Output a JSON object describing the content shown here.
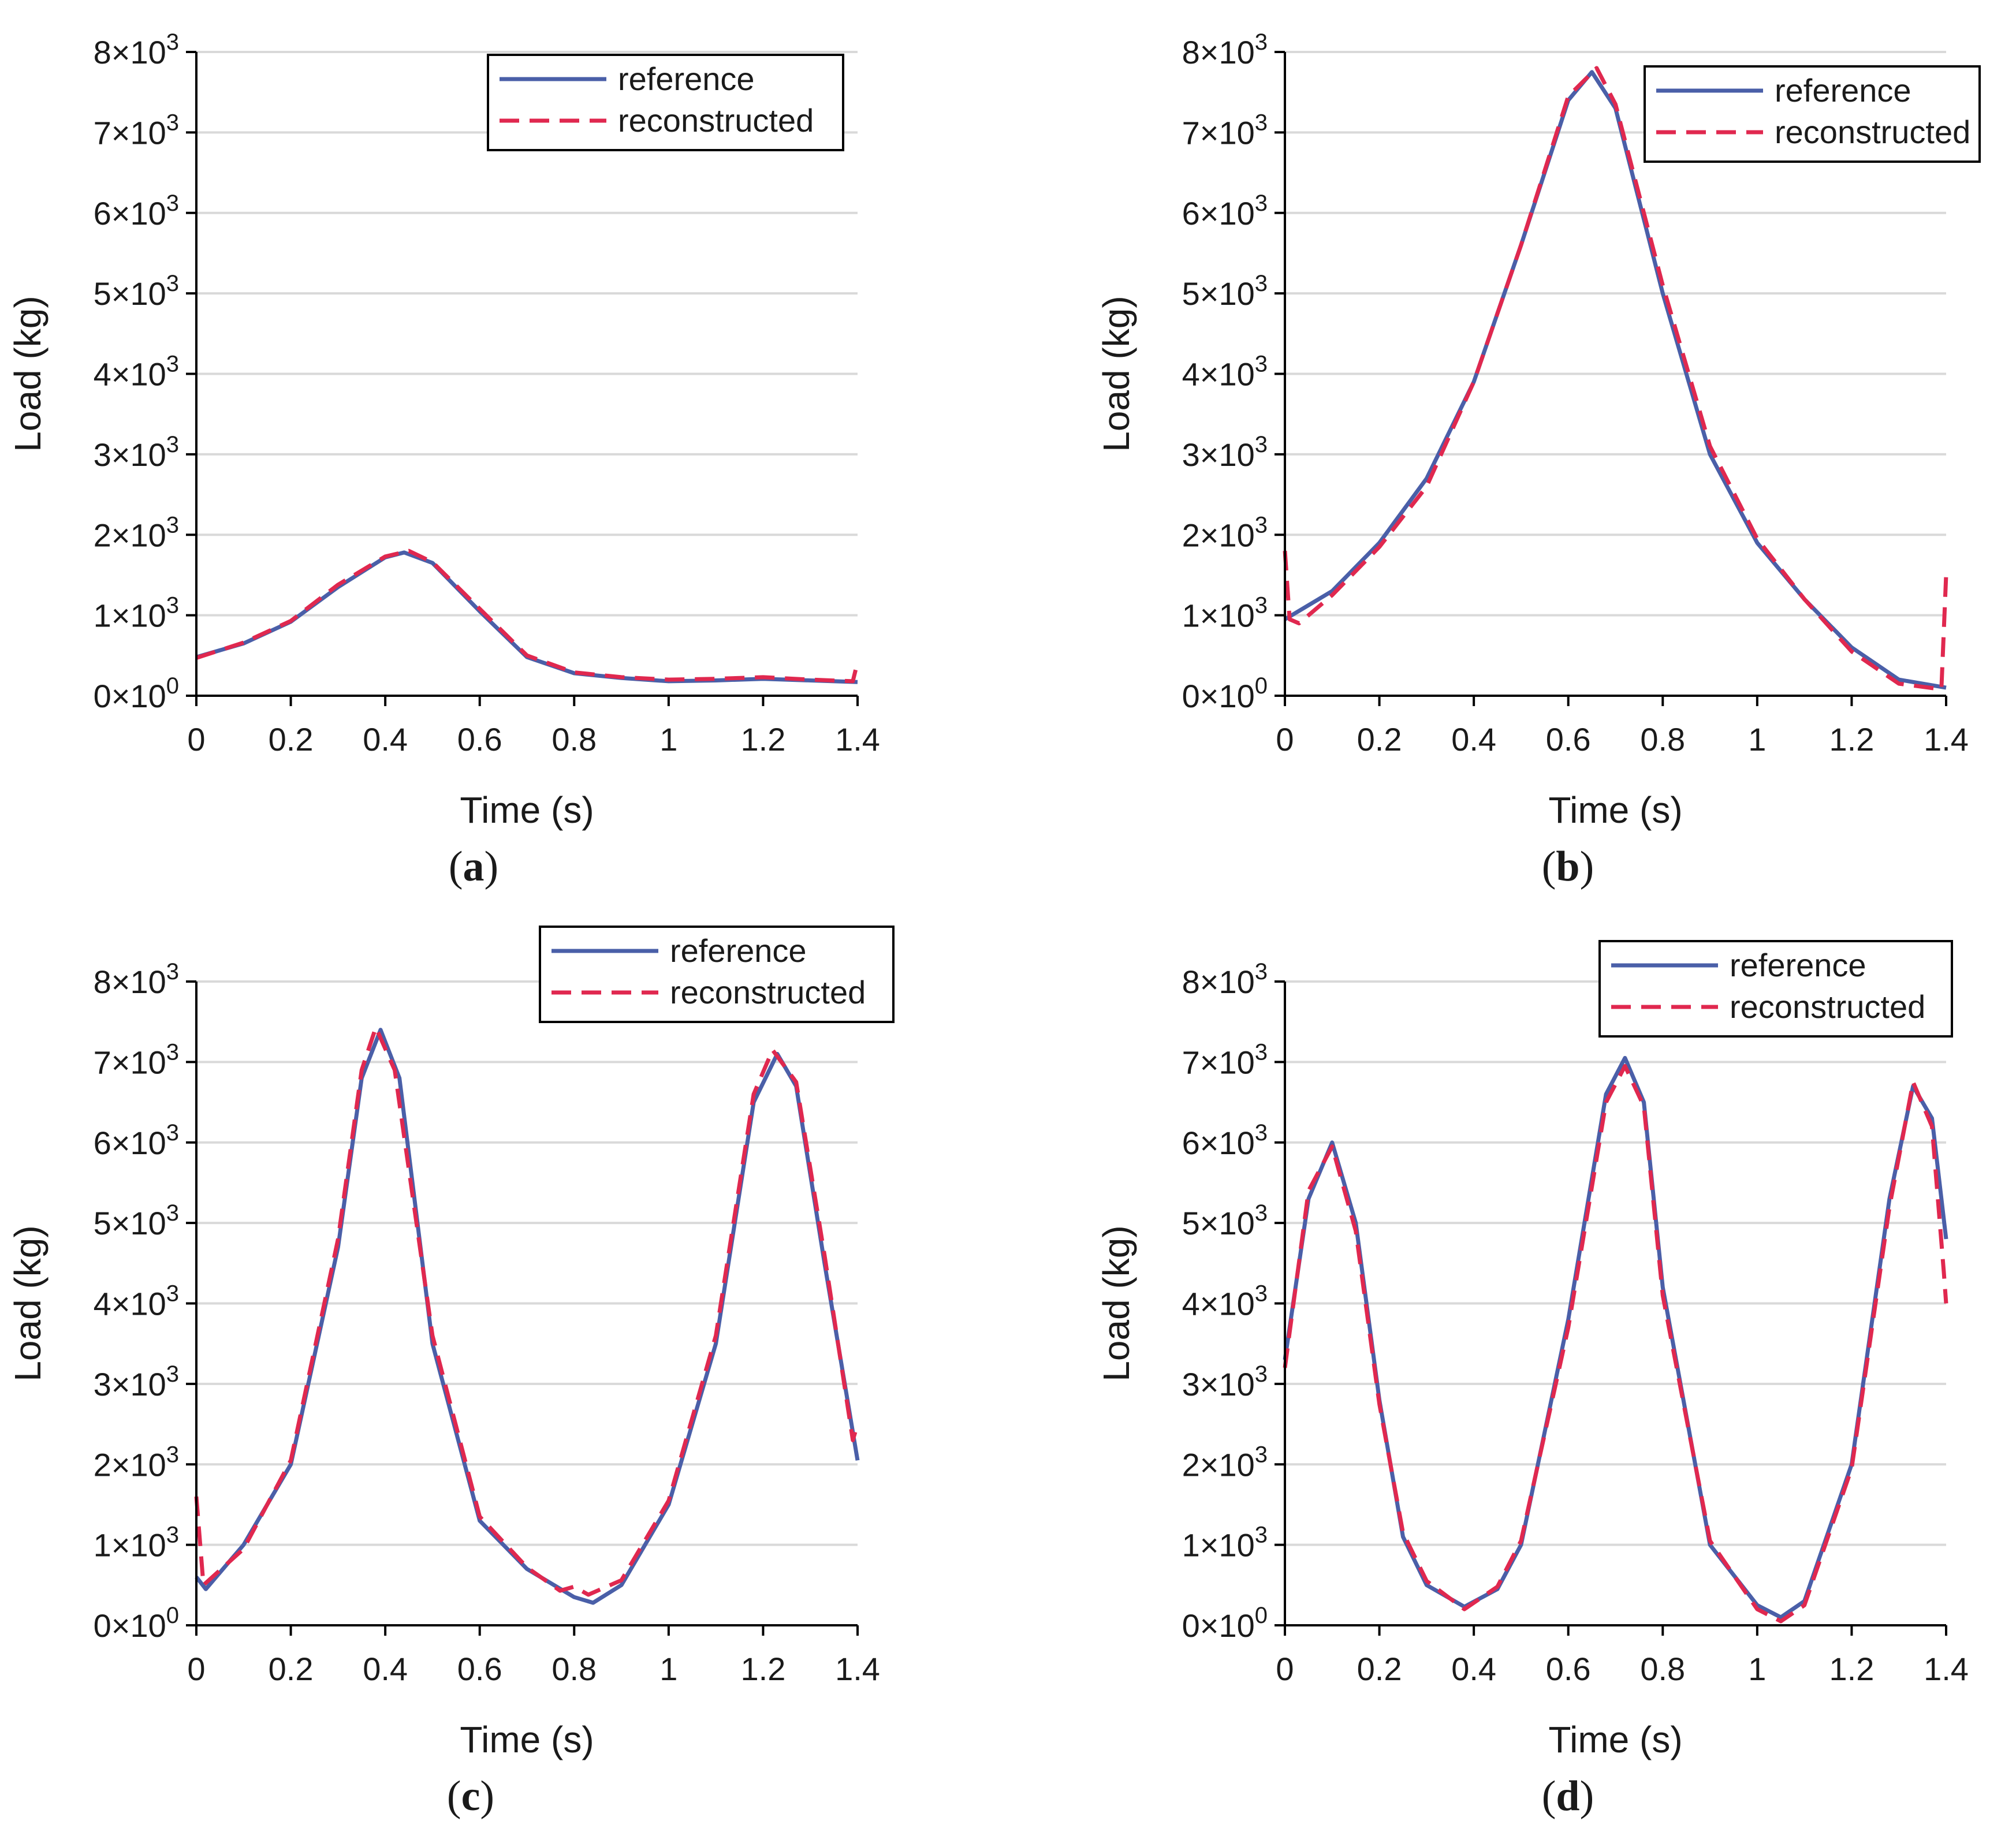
{
  "chart_data": [
    {
      "id": "a",
      "type": "line",
      "caption": "a",
      "xlabel": "Time (s)",
      "ylabel": "Load (kg)",
      "xlim": [
        0,
        1.4
      ],
      "ylim": [
        0,
        8000
      ],
      "xticks": [
        "0",
        "0.2",
        "0.4",
        "0.6",
        "0.8",
        "1",
        "1.2",
        "1.4"
      ],
      "ytick_mantissa": [
        "0",
        "1",
        "2",
        "3",
        "4",
        "5",
        "6",
        "7",
        "8"
      ],
      "ytick_exponent": [
        "0",
        "3",
        "3",
        "3",
        "3",
        "3",
        "3",
        "3",
        "3"
      ],
      "ytick_times": "×10",
      "grid": true,
      "legend": {
        "position": "top-right",
        "entries": [
          "reference",
          "reconstructed"
        ]
      },
      "series": [
        {
          "name": "reference",
          "color": "#4a5fa8",
          "style": "solid",
          "x": [
            0,
            0.1,
            0.2,
            0.3,
            0.4,
            0.44,
            0.5,
            0.6,
            0.7,
            0.8,
            0.9,
            1.0,
            1.1,
            1.2,
            1.3,
            1.4
          ],
          "y": [
            480,
            650,
            920,
            1350,
            1720,
            1780,
            1650,
            1050,
            480,
            280,
            220,
            180,
            190,
            210,
            190,
            170
          ]
        },
        {
          "name": "reconstructed",
          "color": "#e0284f",
          "style": "dashed",
          "x": [
            0,
            0.1,
            0.2,
            0.3,
            0.4,
            0.45,
            0.5,
            0.6,
            0.7,
            0.8,
            0.9,
            1.0,
            1.1,
            1.2,
            1.3,
            1.39,
            1.4
          ],
          "y": [
            470,
            660,
            930,
            1380,
            1730,
            1800,
            1660,
            1080,
            500,
            290,
            230,
            200,
            210,
            230,
            200,
            180,
            420
          ]
        }
      ]
    },
    {
      "id": "b",
      "type": "line",
      "caption": "b",
      "xlabel": "Time (s)",
      "ylabel": "Load (kg)",
      "xlim": [
        0,
        1.4
      ],
      "ylim": [
        0,
        8000
      ],
      "xticks": [
        "0",
        "0.2",
        "0.4",
        "0.6",
        "0.8",
        "1",
        "1.2",
        "1.4"
      ],
      "ytick_mantissa": [
        "0",
        "1",
        "2",
        "3",
        "4",
        "5",
        "6",
        "7",
        "8"
      ],
      "ytick_exponent": [
        "0",
        "3",
        "3",
        "3",
        "3",
        "3",
        "3",
        "3",
        "3"
      ],
      "ytick_times": "×10",
      "grid": true,
      "legend": {
        "position": "top-right",
        "entries": [
          "reference",
          "reconstructed"
        ]
      },
      "series": [
        {
          "name": "reference",
          "color": "#4a5fa8",
          "style": "solid",
          "x": [
            0,
            0.1,
            0.2,
            0.3,
            0.4,
            0.5,
            0.6,
            0.65,
            0.7,
            0.8,
            0.9,
            1.0,
            1.1,
            1.2,
            1.3,
            1.4
          ],
          "y": [
            950,
            1300,
            1900,
            2700,
            3900,
            5600,
            7400,
            7750,
            7300,
            5000,
            3000,
            1900,
            1200,
            600,
            200,
            100
          ]
        },
        {
          "name": "reconstructed",
          "color": "#e0284f",
          "style": "dashed",
          "x": [
            0,
            0.01,
            0.03,
            0.1,
            0.2,
            0.3,
            0.4,
            0.5,
            0.6,
            0.66,
            0.7,
            0.8,
            0.9,
            1.0,
            1.1,
            1.2,
            1.3,
            1.39,
            1.4
          ],
          "y": [
            1800,
            950,
            900,
            1250,
            1850,
            2600,
            3900,
            5600,
            7450,
            7800,
            7350,
            5100,
            3100,
            1950,
            1200,
            550,
            150,
            80,
            1500
          ]
        }
      ]
    },
    {
      "id": "c",
      "type": "line",
      "caption": "c",
      "xlabel": "Time (s)",
      "ylabel": "Load (kg)",
      "xlim": [
        0,
        1.4
      ],
      "ylim": [
        0,
        8000
      ],
      "xticks": [
        "0",
        "0.2",
        "0.4",
        "0.6",
        "0.8",
        "1",
        "1.2",
        "1.4"
      ],
      "ytick_mantissa": [
        "0",
        "1",
        "2",
        "3",
        "4",
        "5",
        "6",
        "7",
        "8"
      ],
      "ytick_exponent": [
        "0",
        "3",
        "3",
        "3",
        "3",
        "3",
        "3",
        "3",
        "3"
      ],
      "ytick_times": "×10",
      "grid": true,
      "legend": {
        "position": "top-right",
        "entries": [
          "reference",
          "reconstructed"
        ]
      },
      "series": [
        {
          "name": "reference",
          "color": "#4a5fa8",
          "style": "solid",
          "x": [
            0,
            0.02,
            0.1,
            0.2,
            0.3,
            0.35,
            0.39,
            0.43,
            0.5,
            0.6,
            0.7,
            0.8,
            0.84,
            0.9,
            1.0,
            1.1,
            1.18,
            1.23,
            1.27,
            1.33,
            1.4
          ],
          "y": [
            600,
            450,
            1000,
            2000,
            4700,
            6800,
            7400,
            6800,
            3500,
            1300,
            700,
            350,
            280,
            500,
            1500,
            3500,
            6500,
            7100,
            6700,
            4500,
            2050
          ]
        },
        {
          "name": "reconstructed",
          "color": "#e0284f",
          "style": "dashed",
          "x": [
            0,
            0.015,
            0.1,
            0.2,
            0.3,
            0.35,
            0.38,
            0.42,
            0.5,
            0.6,
            0.7,
            0.77,
            0.8,
            0.83,
            0.9,
            1.0,
            1.1,
            1.18,
            1.22,
            1.27,
            1.33,
            1.39,
            1.4
          ],
          "y": [
            1600,
            500,
            950,
            2050,
            4800,
            6900,
            7430,
            6900,
            3600,
            1350,
            720,
            430,
            480,
            380,
            560,
            1550,
            3600,
            6600,
            7150,
            6750,
            4600,
            2300,
            2500
          ]
        }
      ]
    },
    {
      "id": "d",
      "type": "line",
      "caption": "d",
      "xlabel": "Time (s)",
      "ylabel": "Load (kg)",
      "xlim": [
        0,
        1.4
      ],
      "ylim": [
        0,
        8000
      ],
      "xticks": [
        "0",
        "0.2",
        "0.4",
        "0.6",
        "0.8",
        "1",
        "1.2",
        "1.4"
      ],
      "ytick_mantissa": [
        "0",
        "1",
        "2",
        "3",
        "4",
        "5",
        "6",
        "7",
        "8"
      ],
      "ytick_exponent": [
        "0",
        "3",
        "3",
        "3",
        "3",
        "3",
        "3",
        "3",
        "3"
      ],
      "ytick_times": "×10",
      "grid": true,
      "legend": {
        "position": "top-right",
        "entries": [
          "reference",
          "reconstructed"
        ]
      },
      "series": [
        {
          "name": "reference",
          "color": "#4a5fa8",
          "style": "solid",
          "x": [
            0,
            0.05,
            0.1,
            0.15,
            0.2,
            0.25,
            0.3,
            0.38,
            0.45,
            0.5,
            0.6,
            0.68,
            0.72,
            0.76,
            0.8,
            0.9,
            1.0,
            1.05,
            1.1,
            1.2,
            1.28,
            1.33,
            1.37,
            1.4
          ],
          "y": [
            3300,
            5300,
            6000,
            5000,
            2800,
            1100,
            500,
            230,
            450,
            1000,
            3800,
            6600,
            7050,
            6500,
            4200,
            1000,
            250,
            100,
            300,
            2000,
            5300,
            6700,
            6300,
            4800
          ]
        },
        {
          "name": "reconstructed",
          "color": "#e0284f",
          "style": "dashed",
          "x": [
            0,
            0.05,
            0.1,
            0.15,
            0.2,
            0.25,
            0.3,
            0.38,
            0.45,
            0.5,
            0.6,
            0.68,
            0.72,
            0.76,
            0.8,
            0.9,
            1.0,
            1.05,
            1.1,
            1.2,
            1.28,
            1.33,
            1.37,
            1.395,
            1.4
          ],
          "y": [
            3200,
            5400,
            5950,
            4900,
            2750,
            1150,
            550,
            200,
            480,
            1050,
            3700,
            6500,
            6950,
            6450,
            4100,
            1050,
            200,
            50,
            250,
            1950,
            5200,
            6750,
            6200,
            4400,
            4000
          ]
        }
      ]
    }
  ]
}
